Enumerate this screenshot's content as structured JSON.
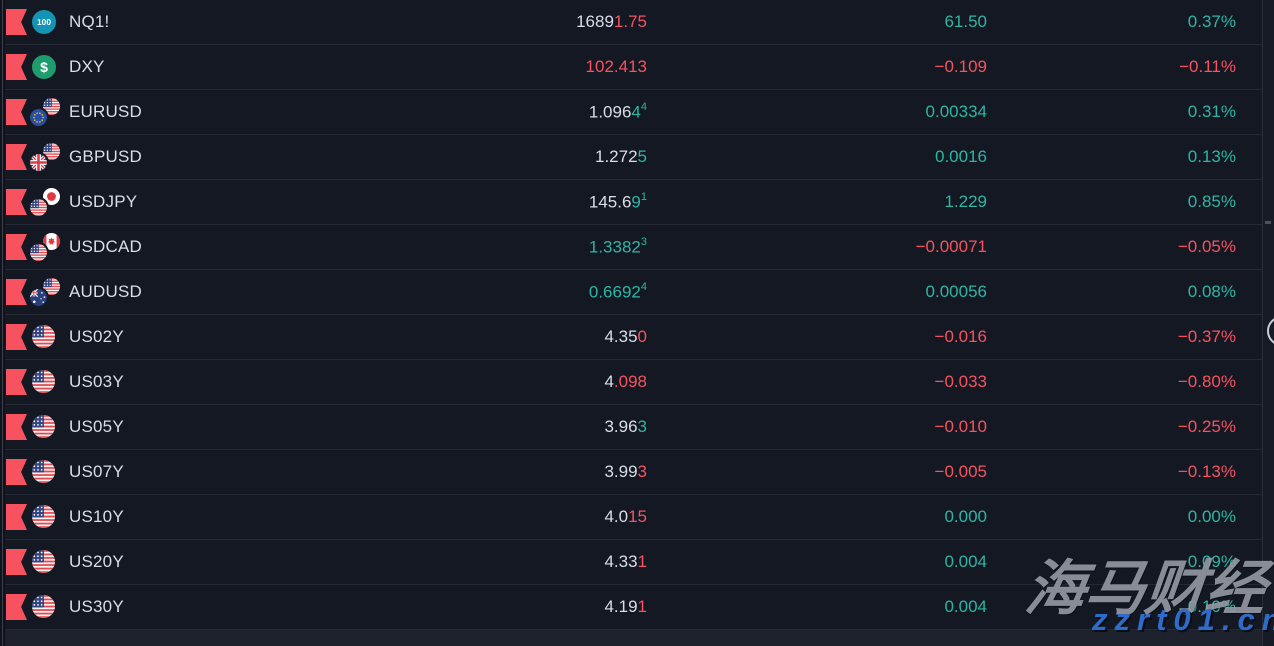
{
  "colors": {
    "green": "#2eb5a4",
    "red": "#f7525f",
    "neutral": "#d9dde6",
    "flag": "#f7525f"
  },
  "watchlist": {
    "rows": [
      {
        "symbol": "NQ1!",
        "icon": "nasdaq-100",
        "icon_text": "100",
        "price": [
          {
            "t": "1689",
            "c": "neutral"
          },
          {
            "t": "1.75",
            "c": "red"
          }
        ],
        "change": "61.50",
        "change_color": "green",
        "percent": "0.37%",
        "percent_color": "green"
      },
      {
        "symbol": "DXY",
        "icon": "usd-index",
        "icon_text": "$",
        "price": [
          {
            "t": "102.413",
            "c": "red"
          }
        ],
        "change": "−0.109",
        "change_color": "red",
        "percent": "−0.11%",
        "percent_color": "red"
      },
      {
        "symbol": "EURUSD",
        "icon": "eur-usd",
        "price": [
          {
            "t": "1.096",
            "c": "neutral"
          },
          {
            "t": "4",
            "c": "green"
          },
          {
            "t": "4",
            "c": "green",
            "sup": true
          }
        ],
        "change": "0.00334",
        "change_color": "green",
        "percent": "0.31%",
        "percent_color": "green"
      },
      {
        "symbol": "GBPUSD",
        "icon": "gbp-usd",
        "price": [
          {
            "t": "1.272",
            "c": "neutral"
          },
          {
            "t": "5",
            "c": "green"
          }
        ],
        "change": "0.0016",
        "change_color": "green",
        "percent": "0.13%",
        "percent_color": "green"
      },
      {
        "symbol": "USDJPY",
        "icon": "usd-jpy",
        "price": [
          {
            "t": "145.6",
            "c": "neutral"
          },
          {
            "t": "9",
            "c": "green"
          },
          {
            "t": "1",
            "c": "green",
            "sup": true
          }
        ],
        "change": "1.229",
        "change_color": "green",
        "percent": "0.85%",
        "percent_color": "green"
      },
      {
        "symbol": "USDCAD",
        "icon": "usd-cad",
        "price": [
          {
            "t": "1.3382",
            "c": "green"
          },
          {
            "t": "3",
            "c": "green",
            "sup": true
          }
        ],
        "change": "−0.00071",
        "change_color": "red",
        "percent": "−0.05%",
        "percent_color": "red"
      },
      {
        "symbol": "AUDUSD",
        "icon": "aud-usd",
        "price": [
          {
            "t": "0.6692",
            "c": "green"
          },
          {
            "t": "4",
            "c": "green",
            "sup": true
          }
        ],
        "change": "0.00056",
        "change_color": "green",
        "percent": "0.08%",
        "percent_color": "green"
      },
      {
        "symbol": "US02Y",
        "icon": "us-flag",
        "price": [
          {
            "t": "4.35",
            "c": "neutral"
          },
          {
            "t": "0",
            "c": "red"
          }
        ],
        "change": "−0.016",
        "change_color": "red",
        "percent": "−0.37%",
        "percent_color": "red"
      },
      {
        "symbol": "US03Y",
        "icon": "us-flag",
        "price": [
          {
            "t": "4",
            "c": "neutral"
          },
          {
            "t": ".098",
            "c": "red"
          }
        ],
        "change": "−0.033",
        "change_color": "red",
        "percent": "−0.80%",
        "percent_color": "red"
      },
      {
        "symbol": "US05Y",
        "icon": "us-flag",
        "price": [
          {
            "t": "3.96",
            "c": "neutral"
          },
          {
            "t": "3",
            "c": "green"
          }
        ],
        "change": "−0.010",
        "change_color": "red",
        "percent": "−0.25%",
        "percent_color": "red"
      },
      {
        "symbol": "US07Y",
        "icon": "us-flag",
        "price": [
          {
            "t": "3.99",
            "c": "neutral"
          },
          {
            "t": "3",
            "c": "red"
          }
        ],
        "change": "−0.005",
        "change_color": "red",
        "percent": "−0.13%",
        "percent_color": "red"
      },
      {
        "symbol": "US10Y",
        "icon": "us-flag",
        "price": [
          {
            "t": "4.0",
            "c": "neutral"
          },
          {
            "t": "15",
            "c": "red"
          }
        ],
        "change": "0.000",
        "change_color": "green",
        "percent": "0.00%",
        "percent_color": "green"
      },
      {
        "symbol": "US20Y",
        "icon": "us-flag",
        "price": [
          {
            "t": "4.33",
            "c": "neutral"
          },
          {
            "t": "1",
            "c": "red"
          }
        ],
        "change": "0.004",
        "change_color": "green",
        "percent": "0.09%",
        "percent_color": "green"
      },
      {
        "symbol": "US30Y",
        "icon": "us-flag",
        "price": [
          {
            "t": "4.19",
            "c": "neutral"
          },
          {
            "t": "1",
            "c": "red"
          }
        ],
        "change": "0.004",
        "change_color": "green",
        "percent": "0.10%",
        "percent_color": "green"
      }
    ]
  },
  "watermark": {
    "title": "海马财经",
    "url": "zzrt01.cn"
  }
}
